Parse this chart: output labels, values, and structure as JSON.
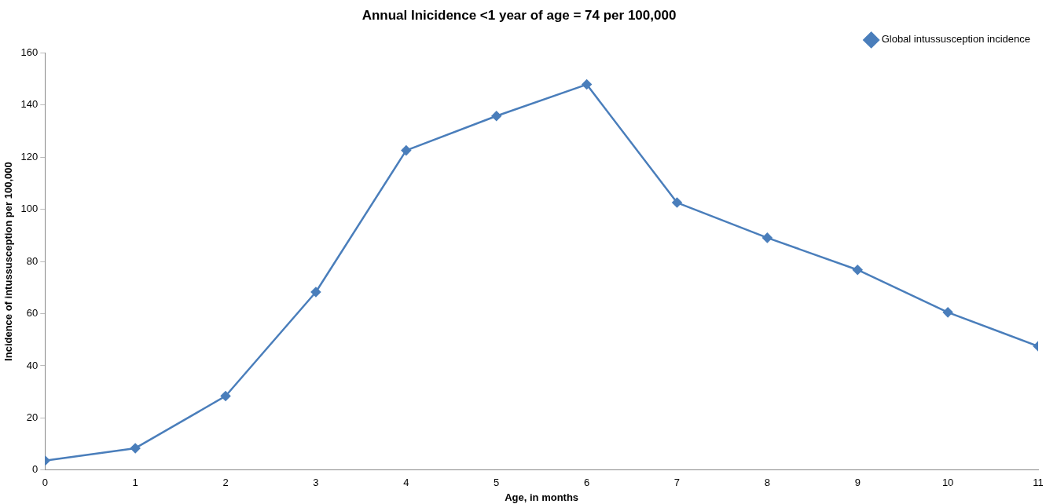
{
  "chart_data": {
    "type": "line",
    "title": "Annual Inicidence <1 year of age = 74 per 100,000",
    "xlabel": "Age, in months",
    "ylabel": "Incidence of intussusception per 100,000",
    "x": [
      0,
      1,
      2,
      3,
      4,
      5,
      6,
      7,
      8,
      9,
      10,
      11
    ],
    "series": [
      {
        "name": "Global intussusception incidence",
        "color": "#4a7ebb",
        "values": [
          3.6,
          8.4,
          28.4,
          68.3,
          122.6,
          135.8,
          147.9,
          102.6,
          89.1,
          76.8,
          60.5,
          47.5
        ]
      }
    ],
    "xlim": [
      0,
      11
    ],
    "xticks": [
      0,
      1,
      2,
      3,
      4,
      5,
      6,
      7,
      8,
      9,
      10,
      11
    ],
    "ylim": [
      0,
      160
    ],
    "yticks": [
      0,
      20,
      40,
      60,
      80,
      100,
      120,
      140,
      160
    ],
    "grid": false,
    "legend": "top right",
    "marker": "diamond",
    "line_style": "solid"
  }
}
